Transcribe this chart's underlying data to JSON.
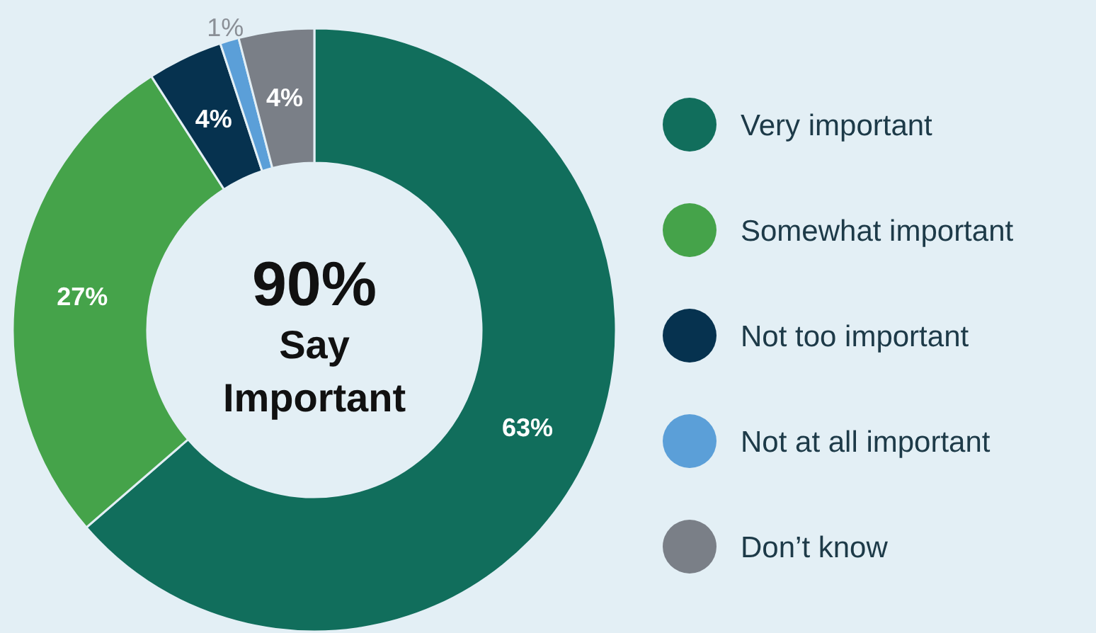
{
  "chart_data": {
    "type": "donut",
    "categories": [
      "Very important",
      "Somewhat important",
      "Not too important",
      "Not at all important",
      "Don’t know"
    ],
    "values": [
      63,
      27,
      4,
      1,
      4
    ],
    "colors": [
      "#116e5c",
      "#45a34a",
      "#06324f",
      "#5b9fd8",
      "#7a7f87"
    ],
    "value_labels": [
      "63%",
      "27%",
      "4%",
      "1%",
      "4%"
    ],
    "legend": "right",
    "annotations": [
      "90%",
      "Say Important"
    ]
  }
}
